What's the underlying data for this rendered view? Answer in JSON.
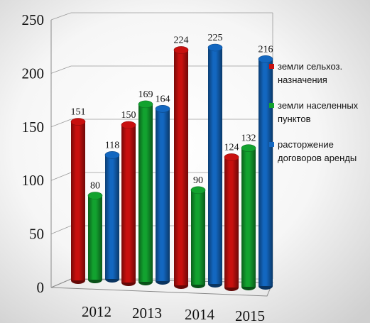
{
  "chart_data": {
    "type": "bar",
    "title": "",
    "xlabel": "",
    "ylabel": "",
    "categories": [
      "2012",
      "2013",
      "2014",
      "2015"
    ],
    "series": [
      {
        "name": "земли сельхоз. назначения",
        "values": [
          151,
          150,
          224,
          124
        ],
        "color": "#c8100e"
      },
      {
        "name": "земли населенных пунктов",
        "values": [
          80,
          169,
          90,
          132
        ],
        "color": "#12a22f"
      },
      {
        "name": "расторжение договоров аренды",
        "values": [
          118,
          164,
          225,
          216
        ],
        "color": "#1367c0"
      }
    ],
    "ylim": [
      0,
      250
    ],
    "yticks": [
      0,
      50,
      100,
      150,
      200,
      250
    ],
    "grid": true,
    "legend_position": "right",
    "perspective_3d": true,
    "bar_shape": "cylinder"
  }
}
